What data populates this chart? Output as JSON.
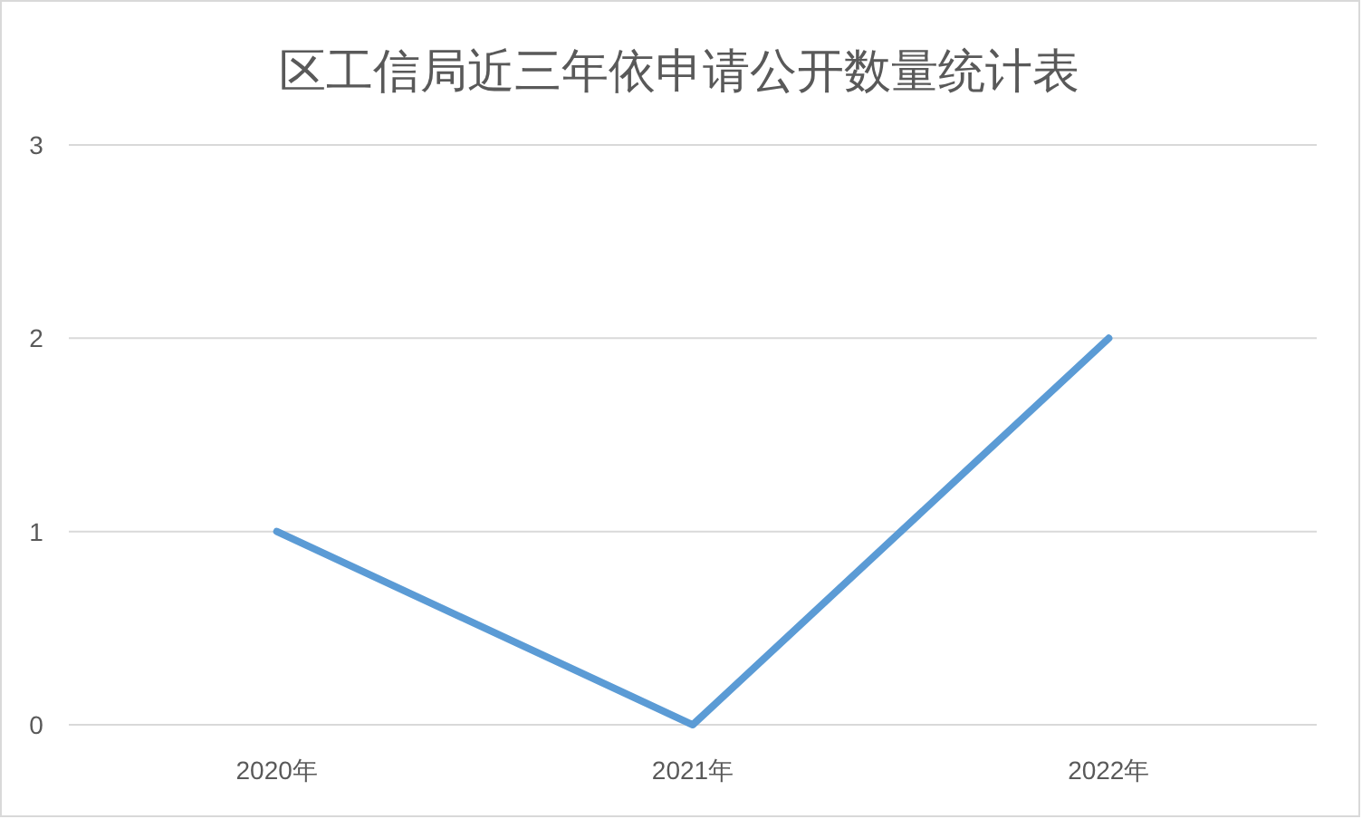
{
  "chart_data": {
    "type": "line",
    "title": "区工信局近三年依申请公开数量统计表",
    "categories": [
      "2020年",
      "2021年",
      "2022年"
    ],
    "series": [
      {
        "color": "#5b9bd5",
        "values": [
          1,
          0,
          2
        ]
      }
    ],
    "ylim": [
      0,
      3
    ],
    "yticks": [
      0,
      1,
      2,
      3
    ],
    "grid": "y",
    "marker": "none",
    "line_style": "solid"
  }
}
